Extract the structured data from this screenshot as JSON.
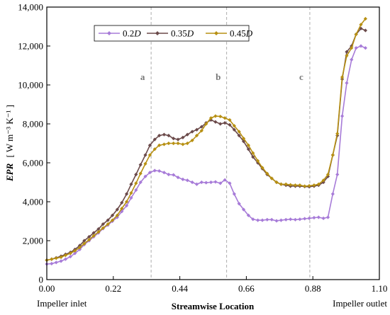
{
  "chart_data": {
    "type": "line",
    "xlabel": "Streamwise Location",
    "ylabel": {
      "main": "EPR",
      "unit": "[ W m⁻³ K⁻¹ ]"
    },
    "x_start_label": "Impeller inlet",
    "x_end_label": "Impeller outlet",
    "xlim": [
      0,
      1.1
    ],
    "ylim": [
      0,
      14000
    ],
    "xticks": [
      0.0,
      0.22,
      0.44,
      0.66,
      0.88,
      1.1
    ],
    "xtick_labels": [
      "0.00",
      "0.22",
      "0.44",
      "0.66",
      "0.88",
      "1.10"
    ],
    "yticks": [
      0,
      2000,
      4000,
      6000,
      8000,
      10000,
      12000,
      14000
    ],
    "ytick_labels": [
      "0",
      "2,000",
      "4,000",
      "6,000",
      "8,000",
      "10,000",
      "12,000",
      "14,000"
    ],
    "regions": [
      {
        "label": "a",
        "x": 0.345
      },
      {
        "label": "b",
        "x": 0.595
      },
      {
        "label": "c",
        "x": 0.87
      }
    ],
    "series": [
      {
        "name": "0.2D",
        "color": "#a77bd8",
        "x": [
          0.0,
          0.016,
          0.031,
          0.047,
          0.062,
          0.078,
          0.093,
          0.109,
          0.124,
          0.14,
          0.155,
          0.171,
          0.186,
          0.202,
          0.217,
          0.233,
          0.248,
          0.264,
          0.279,
          0.295,
          0.31,
          0.326,
          0.341,
          0.357,
          0.372,
          0.388,
          0.403,
          0.419,
          0.434,
          0.45,
          0.465,
          0.481,
          0.496,
          0.512,
          0.527,
          0.543,
          0.558,
          0.574,
          0.589,
          0.605,
          0.62,
          0.636,
          0.651,
          0.667,
          0.682,
          0.698,
          0.713,
          0.729,
          0.744,
          0.76,
          0.775,
          0.791,
          0.806,
          0.822,
          0.837,
          0.853,
          0.868,
          0.884,
          0.899,
          0.915,
          0.93,
          0.946,
          0.961,
          0.977,
          0.992,
          1.008,
          1.023,
          1.039,
          1.054
        ],
        "y": [
          800,
          820,
          880,
          950,
          1050,
          1180,
          1350,
          1550,
          1800,
          2000,
          2200,
          2400,
          2620,
          2800,
          3000,
          3200,
          3500,
          3800,
          4200,
          4600,
          5000,
          5300,
          5500,
          5600,
          5580,
          5500,
          5400,
          5380,
          5250,
          5150,
          5100,
          5000,
          4900,
          5000,
          4980,
          5000,
          5020,
          4950,
          5120,
          4950,
          4400,
          3900,
          3600,
          3300,
          3100,
          3050,
          3050,
          3080,
          3080,
          3020,
          3050,
          3080,
          3100,
          3080,
          3100,
          3130,
          3150,
          3180,
          3200,
          3150,
          3200,
          4400,
          5400,
          8400,
          10100,
          11300,
          11900,
          12000,
          11900
        ]
      },
      {
        "name": "0.35D",
        "color": "#6b4a4a",
        "x": [
          0.0,
          0.016,
          0.031,
          0.047,
          0.062,
          0.078,
          0.093,
          0.109,
          0.124,
          0.14,
          0.155,
          0.171,
          0.186,
          0.202,
          0.217,
          0.233,
          0.248,
          0.264,
          0.279,
          0.295,
          0.31,
          0.326,
          0.341,
          0.357,
          0.372,
          0.388,
          0.403,
          0.419,
          0.434,
          0.45,
          0.465,
          0.481,
          0.496,
          0.512,
          0.527,
          0.543,
          0.558,
          0.574,
          0.589,
          0.605,
          0.62,
          0.636,
          0.651,
          0.667,
          0.682,
          0.698,
          0.713,
          0.729,
          0.744,
          0.76,
          0.775,
          0.791,
          0.806,
          0.822,
          0.837,
          0.853,
          0.868,
          0.884,
          0.899,
          0.915,
          0.93,
          0.946,
          0.961,
          0.977,
          0.992,
          1.008,
          1.023,
          1.039,
          1.054
        ],
        "y": [
          1000,
          1050,
          1120,
          1200,
          1300,
          1400,
          1550,
          1750,
          2000,
          2200,
          2400,
          2600,
          2850,
          3050,
          3300,
          3600,
          3950,
          4400,
          4900,
          5400,
          5900,
          6400,
          6900,
          7200,
          7400,
          7450,
          7400,
          7250,
          7200,
          7300,
          7450,
          7600,
          7700,
          7850,
          8050,
          8200,
          8100,
          8000,
          8050,
          7950,
          7700,
          7400,
          7100,
          6700,
          6300,
          6000,
          5700,
          5400,
          5200,
          5000,
          4900,
          4850,
          4800,
          4800,
          4800,
          4780,
          4770,
          4800,
          4850,
          5000,
          5300,
          6400,
          7400,
          10300,
          11700,
          12000,
          12600,
          12900,
          12800
        ]
      },
      {
        "name": "0.45D",
        "color": "#b79013",
        "x": [
          0.0,
          0.016,
          0.031,
          0.047,
          0.062,
          0.078,
          0.093,
          0.109,
          0.124,
          0.14,
          0.155,
          0.171,
          0.186,
          0.202,
          0.217,
          0.233,
          0.248,
          0.264,
          0.279,
          0.295,
          0.31,
          0.326,
          0.341,
          0.357,
          0.372,
          0.388,
          0.403,
          0.419,
          0.434,
          0.45,
          0.465,
          0.481,
          0.496,
          0.512,
          0.527,
          0.543,
          0.558,
          0.574,
          0.589,
          0.605,
          0.62,
          0.636,
          0.651,
          0.667,
          0.682,
          0.698,
          0.713,
          0.729,
          0.744,
          0.76,
          0.775,
          0.791,
          0.806,
          0.822,
          0.837,
          0.853,
          0.868,
          0.884,
          0.899,
          0.915,
          0.93,
          0.946,
          0.961,
          0.977,
          0.992,
          1.008,
          1.023,
          1.039,
          1.054
        ],
        "y": [
          1000,
          1050,
          1100,
          1150,
          1250,
          1350,
          1480,
          1650,
          1850,
          2050,
          2250,
          2450,
          2650,
          2850,
          3050,
          3300,
          3650,
          4000,
          4450,
          4950,
          5450,
          5950,
          6400,
          6700,
          6900,
          6950,
          7000,
          7000,
          7000,
          6950,
          7000,
          7150,
          7400,
          7650,
          8000,
          8300,
          8400,
          8380,
          8300,
          8200,
          7900,
          7600,
          7250,
          6900,
          6500,
          6100,
          5750,
          5450,
          5200,
          5000,
          4900,
          4900,
          4870,
          4850,
          4850,
          4800,
          4820,
          4850,
          4900,
          5100,
          5400,
          6400,
          7500,
          10400,
          11500,
          11900,
          12600,
          13100,
          13400
        ]
      }
    ]
  }
}
